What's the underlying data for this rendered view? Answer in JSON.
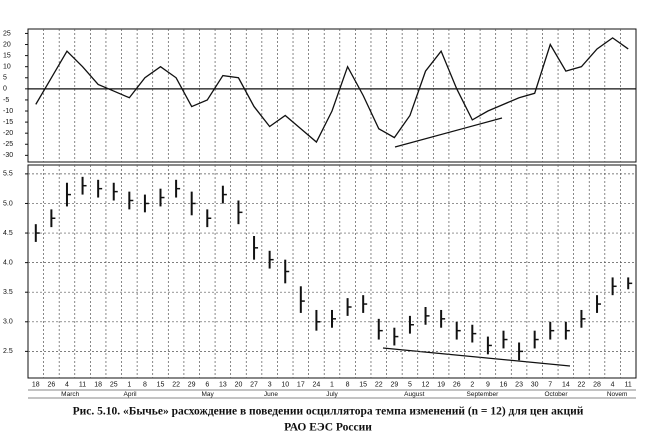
{
  "chart_data": [
    {
      "type": "line",
      "color": "#111111",
      "values": [
        -7,
        5,
        17,
        10,
        2,
        -1,
        -4,
        5,
        10,
        5,
        -8,
        -5,
        6,
        5,
        -8,
        -17,
        -12,
        -18,
        -24,
        -10,
        10,
        -3,
        -18,
        -22,
        -12,
        8,
        17,
        0,
        -14,
        -10,
        -7,
        -4,
        -2,
        20,
        8,
        10,
        18,
        23,
        18
      ],
      "ylim": [
        -33,
        27
      ],
      "yticks": [
        25,
        20,
        15,
        10,
        5,
        0,
        -5,
        -10,
        -15,
        -20,
        -25,
        -30
      ],
      "grid": true
    },
    {
      "type": "ohlc",
      "color": "#111111",
      "categories": [
        "18",
        "26",
        "4",
        "11",
        "18",
        "25",
        "1",
        "8",
        "15",
        "22",
        "29",
        "6",
        "13",
        "20",
        "27",
        "3",
        "10",
        "17",
        "24",
        "1",
        "8",
        "15",
        "22",
        "29",
        "5",
        "12",
        "19",
        "26",
        "2",
        "9",
        "16",
        "23",
        "30",
        "7",
        "14",
        "22",
        "28",
        "4",
        "11"
      ],
      "months": [
        null,
        null,
        "March",
        null,
        null,
        null,
        "April",
        null,
        null,
        null,
        null,
        "May",
        null,
        null,
        null,
        "June",
        null,
        null,
        null,
        "July",
        null,
        null,
        null,
        null,
        "August",
        null,
        null,
        null,
        "September",
        null,
        null,
        null,
        null,
        "October",
        null,
        null,
        null,
        "Novem",
        null
      ],
      "high": [
        4.65,
        4.9,
        5.35,
        5.45,
        5.4,
        5.35,
        5.2,
        5.15,
        5.25,
        5.4,
        5.2,
        4.9,
        5.3,
        5.05,
        4.45,
        4.2,
        4.05,
        3.6,
        3.2,
        3.2,
        3.4,
        3.45,
        3.05,
        2.9,
        3.1,
        3.25,
        3.2,
        3.0,
        2.95,
        2.75,
        2.85,
        2.65,
        2.85,
        3.0,
        3.0,
        3.2,
        3.45,
        3.75,
        3.75
      ],
      "low": [
        4.35,
        4.6,
        4.95,
        5.15,
        5.1,
        5.05,
        4.9,
        4.85,
        4.95,
        5.1,
        4.8,
        4.6,
        5.0,
        4.65,
        4.05,
        3.9,
        3.65,
        3.15,
        2.85,
        2.9,
        3.1,
        3.15,
        2.7,
        2.6,
        2.8,
        2.95,
        2.9,
        2.7,
        2.65,
        2.45,
        2.55,
        2.35,
        2.55,
        2.7,
        2.7,
        2.9,
        3.15,
        3.45,
        3.55
      ],
      "close": [
        4.5,
        4.75,
        5.15,
        5.3,
        5.25,
        5.2,
        5.05,
        5.0,
        5.1,
        5.25,
        5.0,
        4.75,
        5.15,
        4.85,
        4.25,
        4.05,
        3.85,
        3.35,
        3.0,
        3.05,
        3.25,
        3.3,
        2.85,
        2.75,
        2.95,
        3.1,
        3.05,
        2.85,
        2.8,
        2.6,
        2.7,
        2.5,
        2.7,
        2.85,
        2.85,
        3.05,
        3.3,
        3.6,
        3.65
      ],
      "ylim": [
        2.05,
        5.65
      ],
      "yticks": [
        5.5,
        {
          "value": 5,
          "label": "5.0"
        },
        4.5,
        {
          "value": 4,
          "label": "4.0"
        },
        3.5,
        {
          "value": 3,
          "label": "3.0"
        },
        2.5
      ],
      "grid": true
    }
  ],
  "caption": {
    "line1": "Рис. 5.10. «Бычье» расхождение в поведении осциллятора темпа изменений (n = 12) для цен акций",
    "line2": "РАО ЕЭС России"
  }
}
